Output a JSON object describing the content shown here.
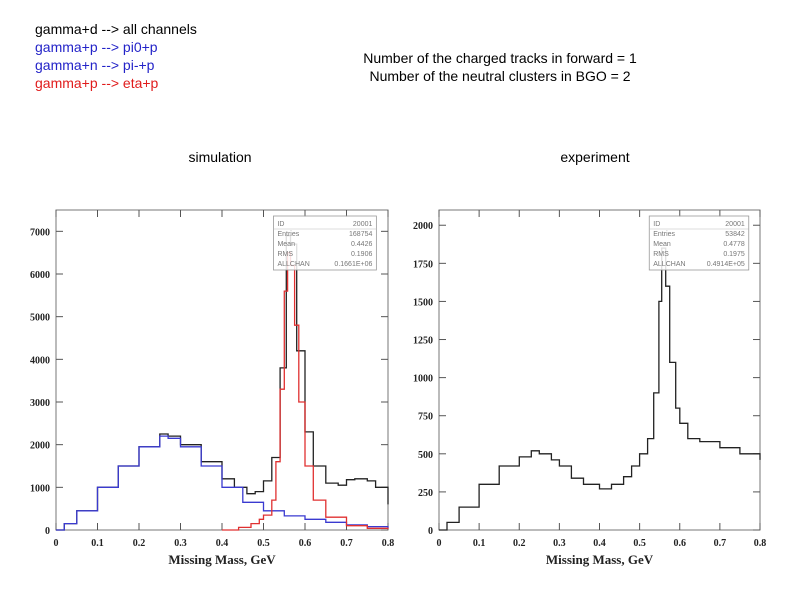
{
  "legend": [
    {
      "text": "gamma+d --> all channels",
      "color": "#000000"
    },
    {
      "text": "gamma+p --> pi0+p",
      "color": "#2323c8"
    },
    {
      "text": "gamma+n --> pi-+p",
      "color": "#2323c8"
    },
    {
      "text": "gamma+p --> eta+p",
      "color": "#e01b1b"
    }
  ],
  "conditions": [
    "Number of the charged tracks in forward = 1",
    "Number of the neutral clusters in BGO = 2"
  ],
  "colors": {
    "all": "#222222",
    "pi": "#3a3ad0",
    "eta": "#e03030",
    "frame": "#777777"
  },
  "chart_data": [
    {
      "type": "line",
      "panel_title": "simulation",
      "xlabel": "Missing Mass, GeV",
      "ylabel": "",
      "xlim": [
        0,
        0.8
      ],
      "ylim": [
        0,
        7500
      ],
      "xticks": [
        0,
        0.1,
        0.2,
        0.3,
        0.4,
        0.5,
        0.6,
        0.7,
        0.8
      ],
      "yticks": [
        0,
        1000,
        2000,
        3000,
        4000,
        5000,
        6000,
        7000
      ],
      "xtick_labels": [
        "0",
        "0.1",
        "0.2",
        "0.3",
        "0.4",
        "0.5",
        "0.6",
        "0.7",
        "0.8"
      ],
      "ytick_labels": [
        "0",
        "1000",
        "2000",
        "3000",
        "4000",
        "5000",
        "6000",
        "7000"
      ],
      "stats": [
        [
          "ID",
          "20001"
        ],
        [
          "Entries",
          "168754"
        ],
        [
          "Mean",
          "0.4426"
        ],
        [
          "RMS",
          "0.1906"
        ],
        [
          "ALLCHAN",
          "0.1661E+06"
        ]
      ],
      "series": [
        {
          "key": "all",
          "x": [
            0,
            0.02,
            0.05,
            0.1,
            0.15,
            0.2,
            0.25,
            0.27,
            0.3,
            0.35,
            0.4,
            0.43,
            0.46,
            0.48,
            0.5,
            0.52,
            0.54,
            0.555,
            0.565,
            0.58,
            0.6,
            0.62,
            0.65,
            0.68,
            0.7,
            0.72,
            0.75,
            0.77,
            0.8
          ],
          "y": [
            0,
            150,
            450,
            1000,
            1500,
            1950,
            2250,
            2200,
            2000,
            1600,
            1200,
            1000,
            850,
            900,
            1150,
            1700,
            3800,
            6900,
            6700,
            4200,
            2300,
            1500,
            1100,
            1050,
            1180,
            1200,
            1150,
            1000,
            600
          ]
        },
        {
          "key": "pi",
          "x": [
            0,
            0.02,
            0.05,
            0.1,
            0.15,
            0.2,
            0.25,
            0.27,
            0.3,
            0.35,
            0.4,
            0.45,
            0.5,
            0.55,
            0.6,
            0.65,
            0.7,
            0.75,
            0.8
          ],
          "y": [
            0,
            150,
            450,
            1000,
            1500,
            1950,
            2200,
            2150,
            1950,
            1500,
            1000,
            650,
            450,
            330,
            250,
            180,
            120,
            80,
            40
          ]
        },
        {
          "key": "eta",
          "x": [
            0.4,
            0.44,
            0.47,
            0.49,
            0.5,
            0.52,
            0.53,
            0.54,
            0.55,
            0.558,
            0.565,
            0.575,
            0.585,
            0.6,
            0.62,
            0.65,
            0.7,
            0.75,
            0.8
          ],
          "y": [
            0,
            60,
            150,
            250,
            350,
            700,
            1600,
            3300,
            5600,
            6500,
            6200,
            4800,
            3000,
            1500,
            700,
            300,
            100,
            40,
            20
          ]
        }
      ]
    },
    {
      "type": "line",
      "panel_title": "experiment",
      "xlabel": "Missing Mass, GeV",
      "ylabel": "",
      "xlim": [
        0,
        0.8
      ],
      "ylim": [
        0,
        2100
      ],
      "xticks": [
        0,
        0.1,
        0.2,
        0.3,
        0.4,
        0.5,
        0.6,
        0.7,
        0.8
      ],
      "yticks": [
        0,
        250,
        500,
        750,
        1000,
        1250,
        1500,
        1750,
        2000
      ],
      "xtick_labels": [
        "0",
        "0.1",
        "0.2",
        "0.3",
        "0.4",
        "0.5",
        "0.6",
        "0.7",
        "0.8"
      ],
      "ytick_labels": [
        "0",
        "250",
        "500",
        "750",
        "1000",
        "1250",
        "1500",
        "1750",
        "2000"
      ],
      "stats": [
        [
          "ID",
          "20001"
        ],
        [
          "Entries",
          "53842"
        ],
        [
          "Mean",
          "0.4778"
        ],
        [
          "RMS",
          "0.1975"
        ],
        [
          "ALLCHAN",
          "0.4914E+05"
        ]
      ],
      "series": [
        {
          "key": "all",
          "x": [
            0,
            0.02,
            0.05,
            0.1,
            0.15,
            0.2,
            0.23,
            0.25,
            0.28,
            0.3,
            0.33,
            0.36,
            0.4,
            0.43,
            0.46,
            0.48,
            0.5,
            0.52,
            0.535,
            0.548,
            0.555,
            0.565,
            0.575,
            0.59,
            0.6,
            0.62,
            0.65,
            0.7,
            0.75,
            0.8
          ],
          "y": [
            0,
            50,
            150,
            300,
            420,
            480,
            520,
            500,
            460,
            420,
            340,
            300,
            270,
            300,
            350,
            420,
            500,
            600,
            900,
            1500,
            1850,
            1600,
            1100,
            800,
            700,
            600,
            580,
            540,
            500,
            460
          ]
        }
      ]
    }
  ]
}
